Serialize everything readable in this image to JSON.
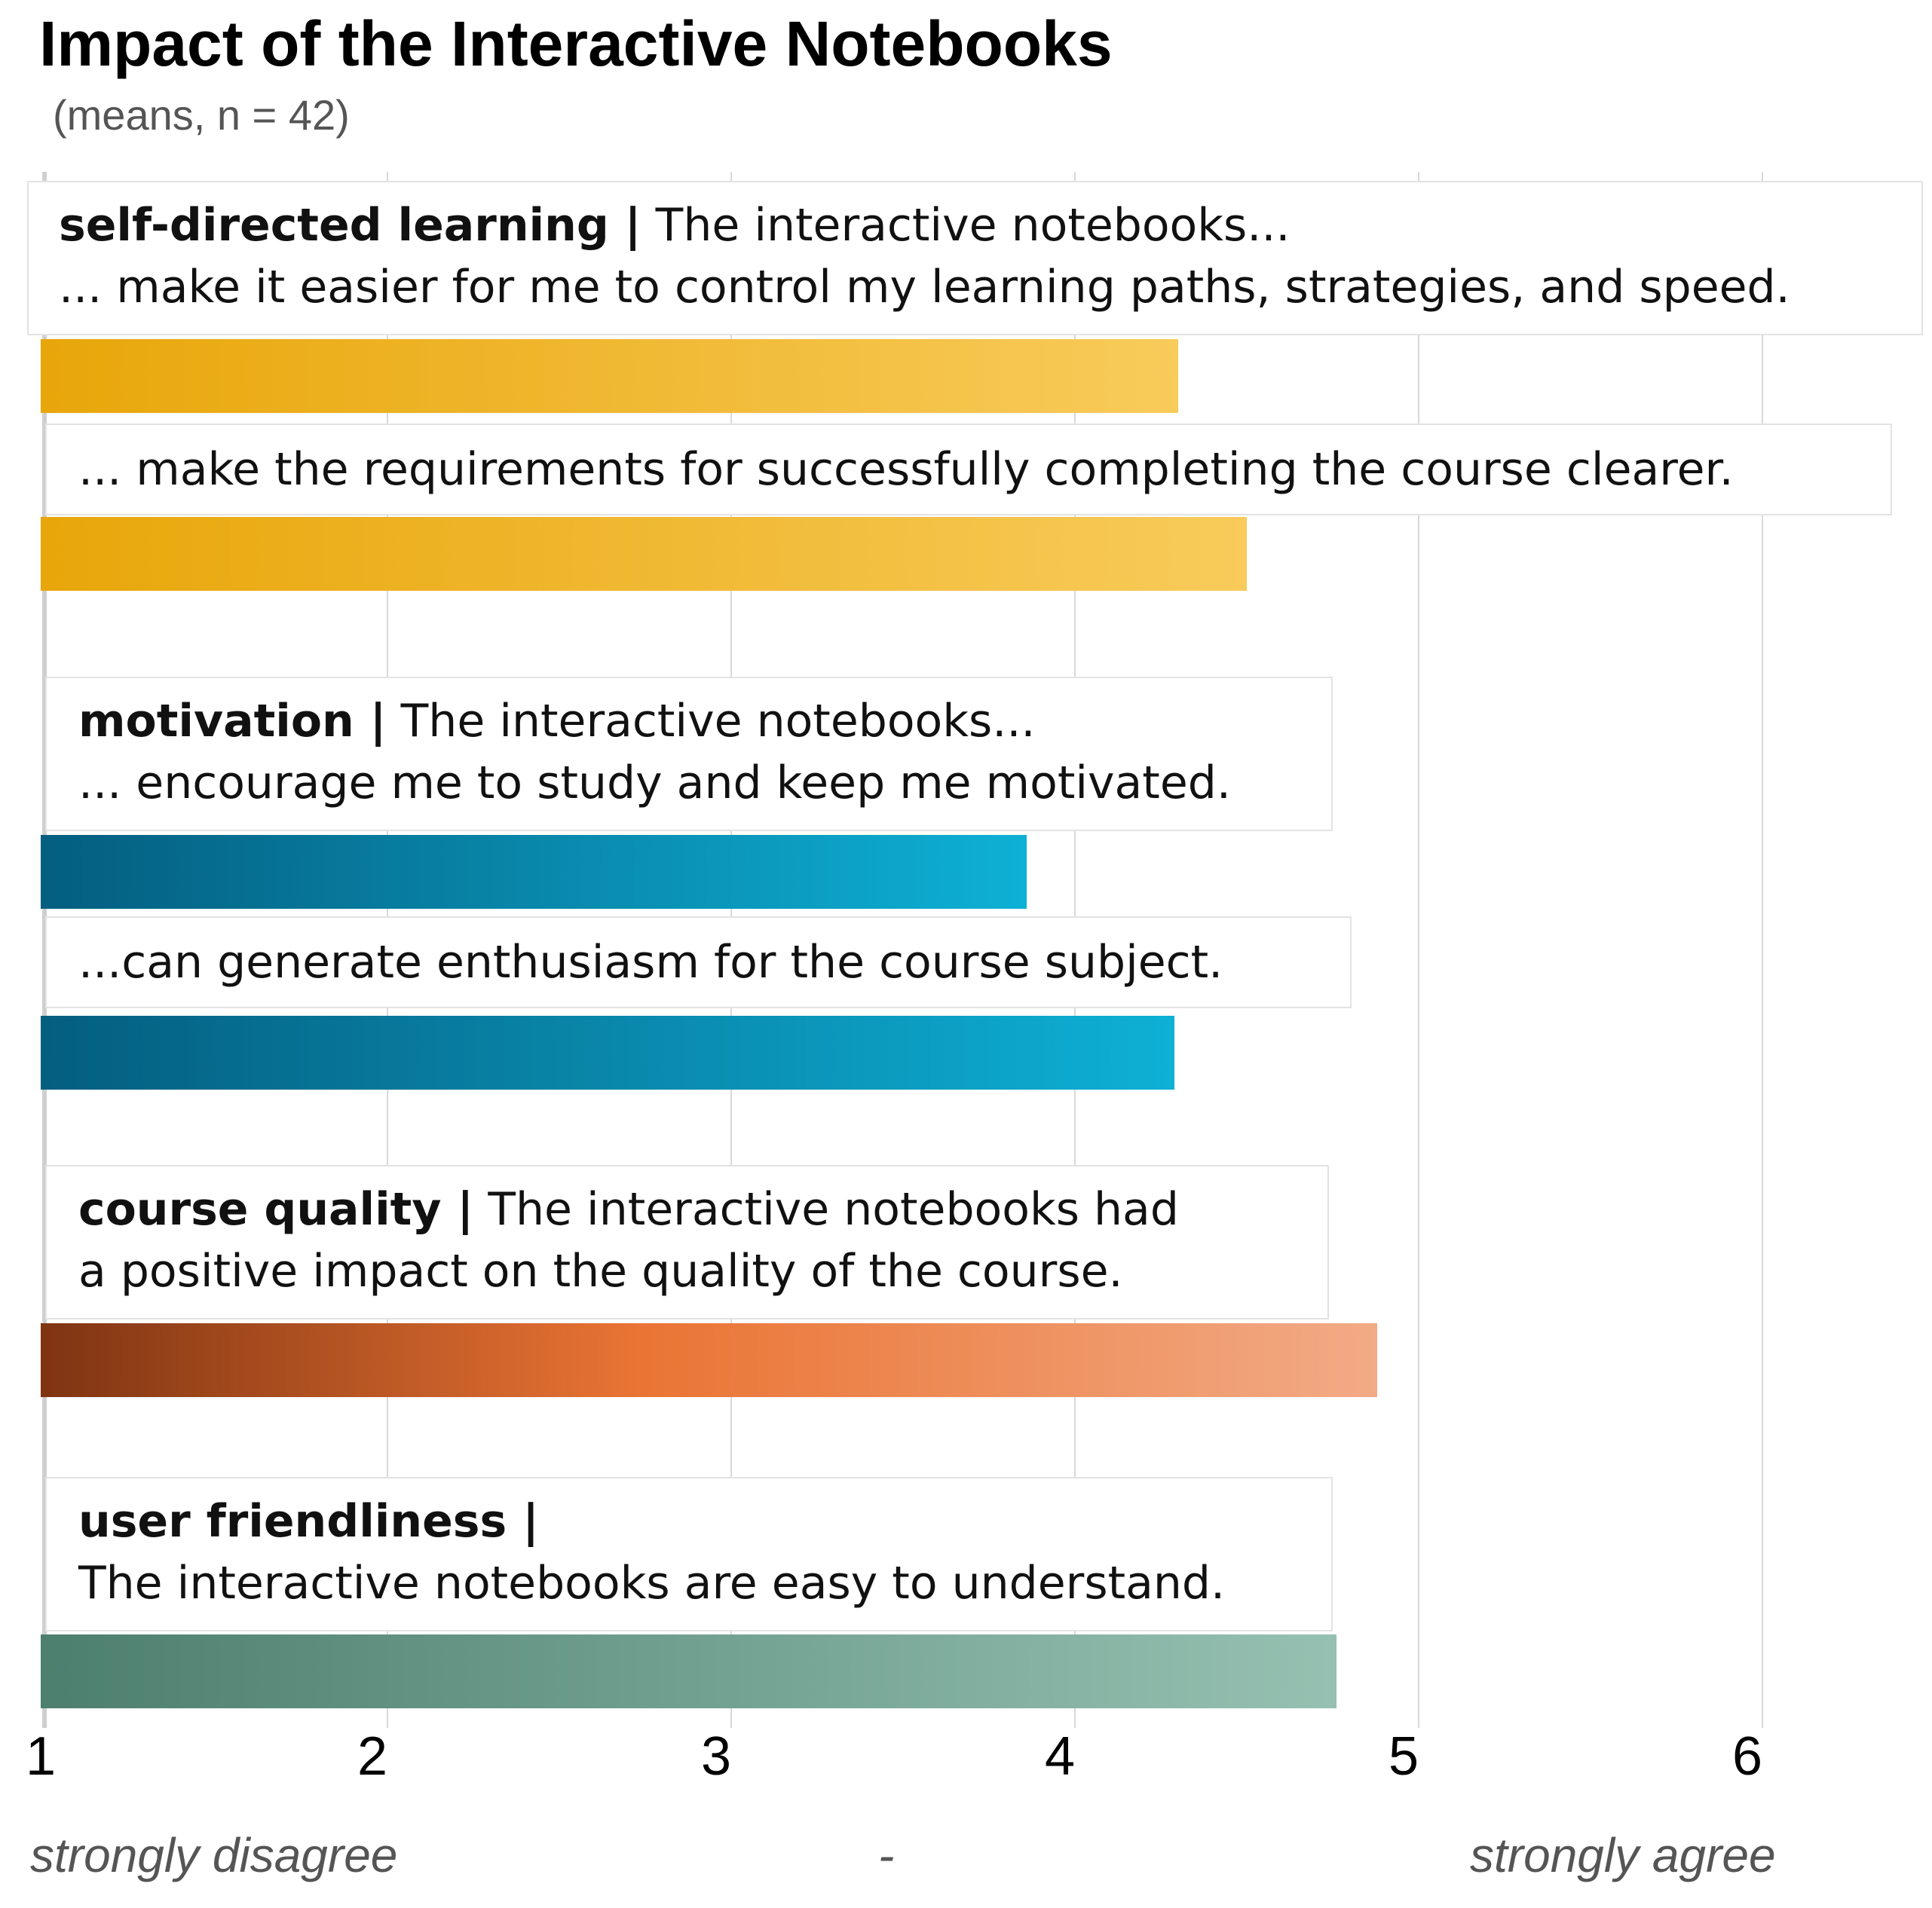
{
  "chart_data": {
    "type": "bar",
    "orientation": "horizontal",
    "title": "Impact of the Interactive Notebooks",
    "subtitle": "(means, n = 42)",
    "xlim": [
      1,
      6.5
    ],
    "xticks": [
      1,
      2,
      3,
      4,
      5,
      6
    ],
    "x_anchor_left": "strongly disagree",
    "x_anchor_middle": "-",
    "x_anchor_right": "strongly agree",
    "grid": true,
    "items": [
      {
        "category": "self-directed learning |",
        "line1": " The interactive notebooks...",
        "line2": "... make it easier for me to control my learning paths, strategies, and speed.",
        "value": 4.3,
        "color_start": "#E8A60A",
        "color_end": "#F8CB5A"
      },
      {
        "category": "",
        "line1": "",
        "line2": "... make the requirements for successfully completing the course clearer.",
        "value": 4.5,
        "color_start": "#E8A60A",
        "color_end": "#F8CB5A"
      },
      {
        "category": "motivation |",
        "line1": " The interactive notebooks...",
        "line2": "... encourage me to study and keep me motivated.",
        "value": 3.86,
        "color_start": "#045E80",
        "color_end": "#0EB0D5"
      },
      {
        "category": "",
        "line1": "",
        "line2": "...can generate enthusiasm for the course subject.",
        "value": 4.29,
        "color_start": "#045E80",
        "color_end": "#0EB0D5"
      },
      {
        "category": "course quality |",
        "line1": " The interactive notebooks had",
        "line2": "a positive impact on the quality of the course.",
        "value": 4.88,
        "color_start": "#7F3412",
        "color_mid": "#EA7434",
        "color_end": "#F2AB86"
      },
      {
        "category": "user friendliness |",
        "line1": "",
        "line2": "The interactive notebooks are easy to understand.",
        "value": 4.76,
        "color_start": "#4D7F6E",
        "color_end": "#96C1B2"
      }
    ]
  }
}
